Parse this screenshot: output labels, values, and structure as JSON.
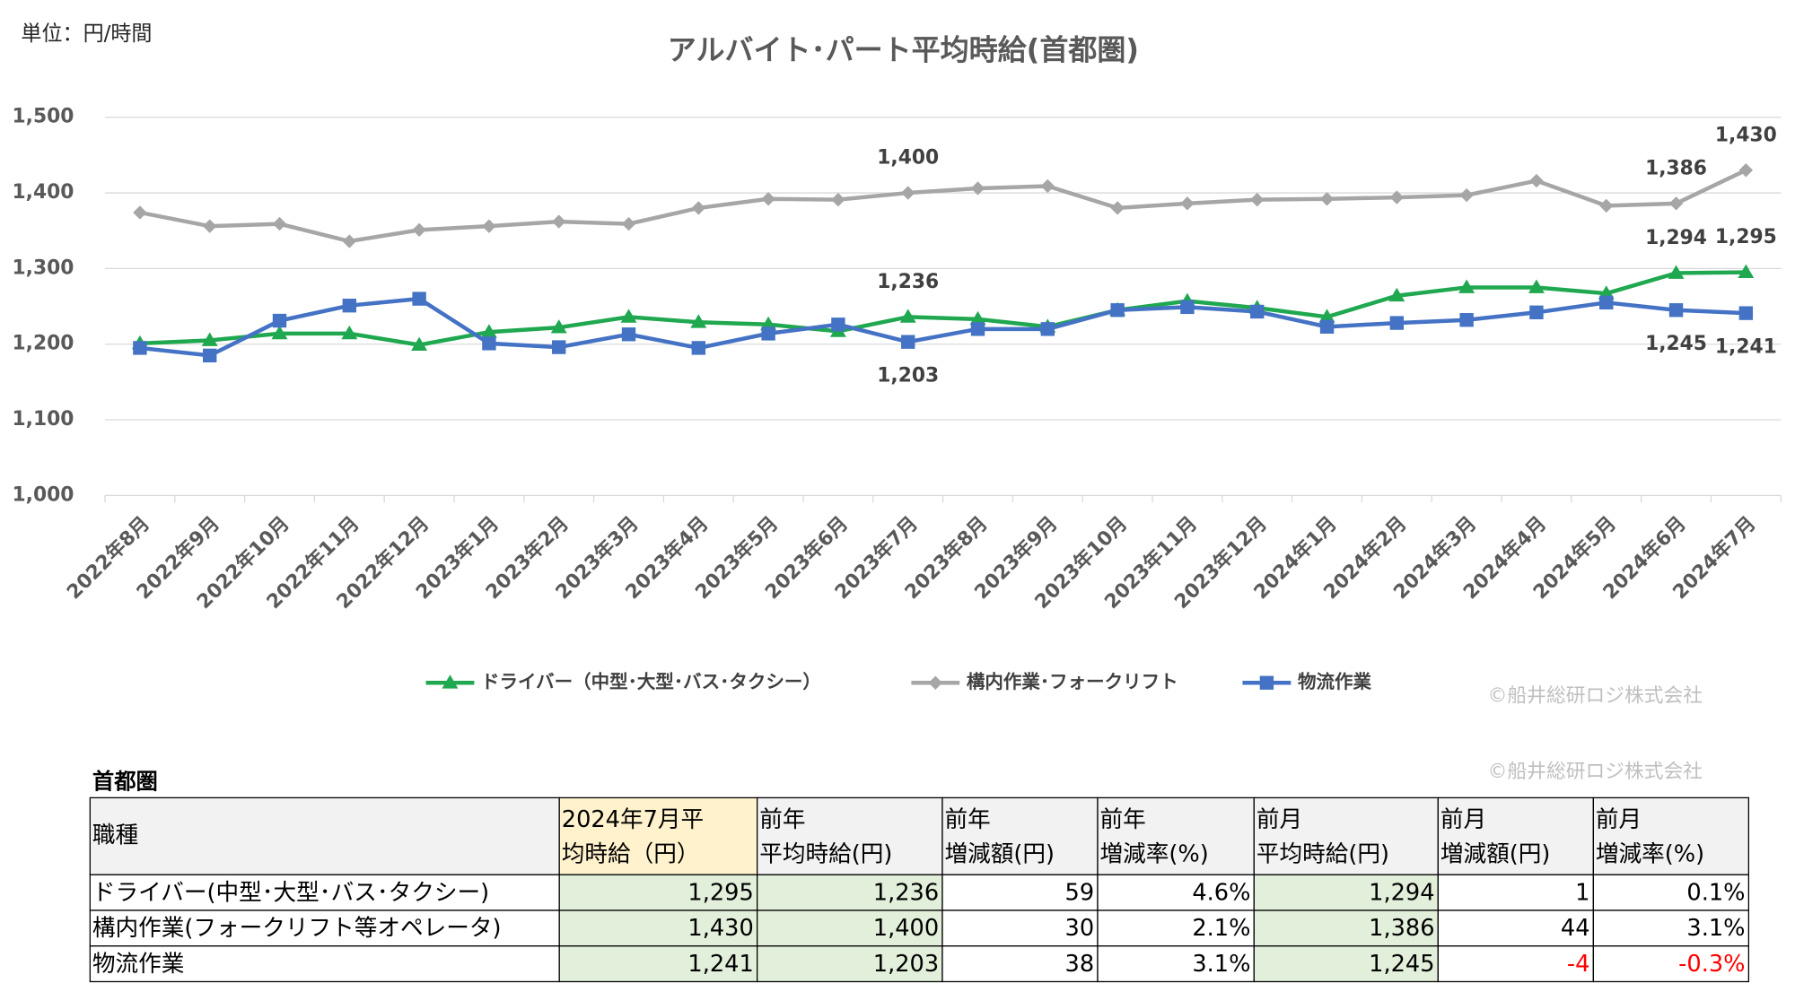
{
  "unit_label": "単位：円/時間",
  "watermarks": [
    "©船井総研ロジ株式会社",
    "©船井総研ロジ株式会社"
  ],
  "chart_data": {
    "type": "line",
    "title": "アルバイト･パート平均時給(首都圏)",
    "categories": [
      "2022年8月",
      "2022年9月",
      "2022年10月",
      "2022年11月",
      "2022年12月",
      "2023年1月",
      "2023年2月",
      "2023年3月",
      "2023年4月",
      "2023年5月",
      "2023年6月",
      "2023年7月",
      "2023年8月",
      "2023年9月",
      "2023年10月",
      "2023年11月",
      "2023年12月",
      "2024年1月",
      "2024年2月",
      "2024年3月",
      "2024年4月",
      "2024年5月",
      "2024年6月",
      "2024年7月"
    ],
    "series": [
      {
        "name": "ドライバー（中型･大型･バス･タクシー）",
        "color": "#1fa84f",
        "marker": "triangle",
        "values": [
          1201,
          1205,
          1214,
          1214,
          1199,
          1216,
          1222,
          1236,
          1229,
          1226,
          1217,
          1236,
          1233,
          1223,
          1245,
          1257,
          1248,
          1236,
          1264,
          1275,
          1275,
          1267,
          1294,
          1295
        ],
        "value_labels": [
          null,
          null,
          null,
          null,
          null,
          null,
          null,
          null,
          null,
          null,
          null,
          "1,236",
          null,
          null,
          null,
          null,
          null,
          null,
          null,
          null,
          null,
          null,
          "1,294",
          "1,295"
        ]
      },
      {
        "name": "構内作業･フォークリフト",
        "color": "#a6a6a6",
        "marker": "diamond",
        "values": [
          1374,
          1356,
          1359,
          1336,
          1351,
          1356,
          1362,
          1359,
          1380,
          1392,
          1391,
          1400,
          1406,
          1409,
          1380,
          1386,
          1391,
          1392,
          1394,
          1397,
          1416,
          1383,
          1386,
          1430
        ],
        "value_labels": [
          null,
          null,
          null,
          null,
          null,
          null,
          null,
          null,
          null,
          null,
          null,
          "1,400",
          null,
          null,
          null,
          null,
          null,
          null,
          null,
          null,
          null,
          null,
          "1,386",
          "1,430"
        ]
      },
      {
        "name": "物流作業",
        "color": "#4472c4",
        "marker": "square",
        "values": [
          1195,
          1185,
          1231,
          1251,
          1260,
          1201,
          1196,
          1213,
          1195,
          1214,
          1226,
          1203,
          1220,
          1220,
          1245,
          1249,
          1243,
          1223,
          1228,
          1232,
          1242,
          1255,
          1245,
          1241
        ],
        "value_labels": [
          null,
          null,
          null,
          null,
          null,
          null,
          null,
          null,
          null,
          null,
          null,
          "1,203",
          null,
          null,
          null,
          null,
          null,
          null,
          null,
          null,
          null,
          null,
          "1,245",
          "1,241"
        ]
      }
    ],
    "ylim": [
      1000,
      1500
    ],
    "yticks": [
      {
        "value": 1000,
        "label": "1,000"
      },
      {
        "value": 1100,
        "label": "1,100"
      },
      {
        "value": 1200,
        "label": "1,200"
      },
      {
        "value": 1300,
        "label": "1,300"
      },
      {
        "value": 1400,
        "label": "1,400"
      },
      {
        "value": 1500,
        "label": "1,500"
      }
    ],
    "grid": true,
    "legend": "bottom"
  },
  "table": {
    "title": "首都圏",
    "headers": [
      [
        "職種"
      ],
      [
        "2024年7月平",
        "均時給（円）"
      ],
      [
        "前年",
        "平均時給(円)"
      ],
      [
        "前年",
        "増減額(円)"
      ],
      [
        "前年",
        "増減率(%)"
      ],
      [
        "前月",
        "平均時給(円)"
      ],
      [
        "前月",
        "増減額(円)"
      ],
      [
        "前月",
        "増減率(%)"
      ]
    ],
    "rows": [
      [
        "ドライバー(中型･大型･バス･タクシー)",
        "1,295",
        "1,236",
        "59",
        "4.6%",
        "1,294",
        "1",
        "0.1%"
      ],
      [
        "構内作業(フォークリフト等オペレータ)",
        "1,430",
        "1,400",
        "30",
        "2.1%",
        "1,386",
        "44",
        "3.1%"
      ],
      [
        "物流作業",
        "1,241",
        "1,203",
        "38",
        "3.1%",
        "1,245",
        "-4",
        "-0.3%"
      ]
    ]
  }
}
